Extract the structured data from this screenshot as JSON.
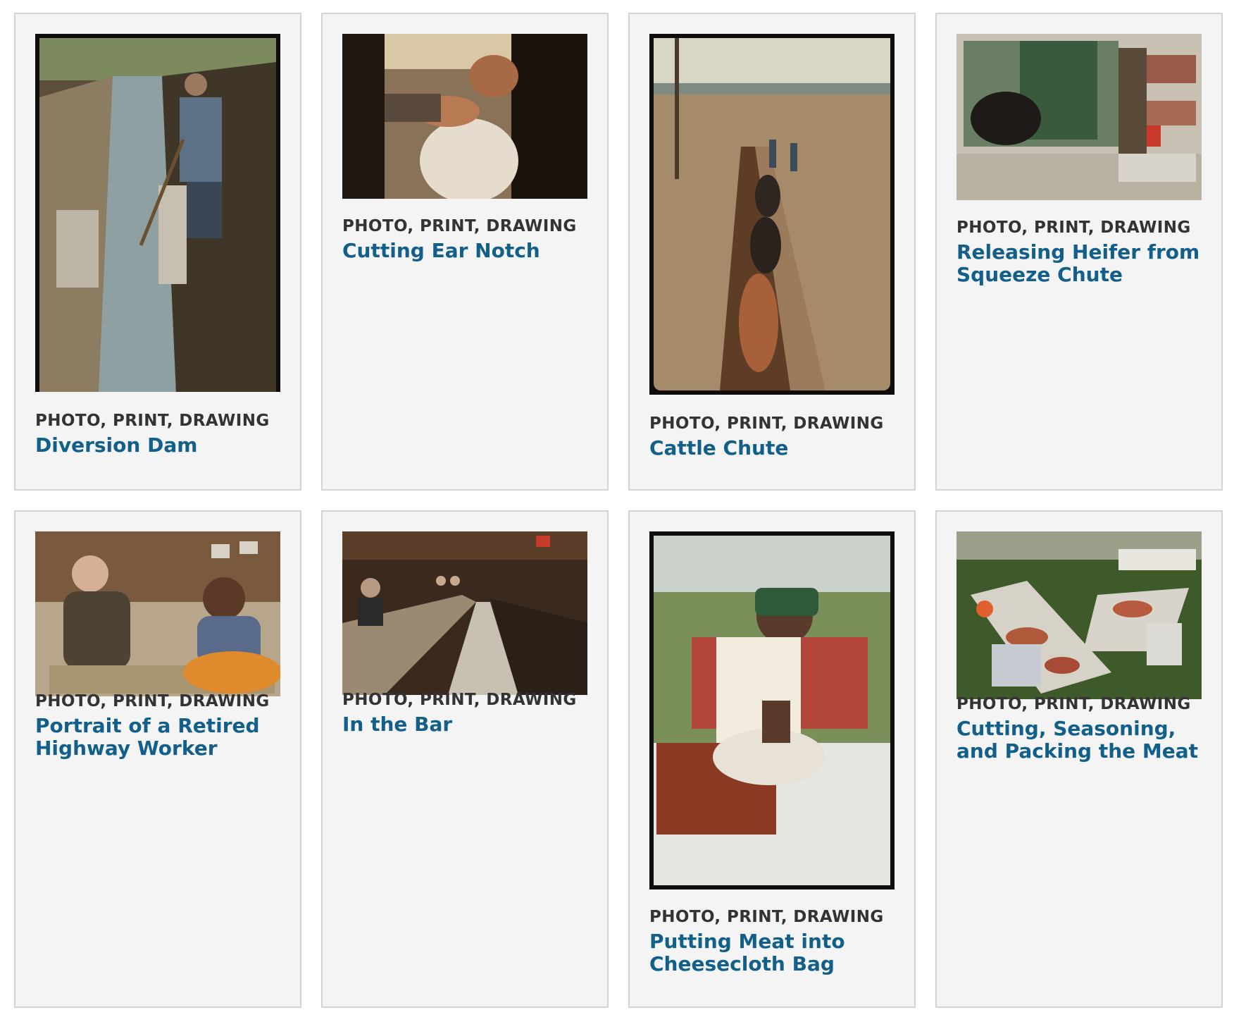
{
  "gallery": {
    "items": [
      {
        "type_label": "PHOTO, PRINT, DRAWING",
        "title": "Diversion Dam",
        "image_desc": "photo-diversion-dam"
      },
      {
        "type_label": "PHOTO, PRINT, DRAWING",
        "title": "Cutting Ear Notch",
        "image_desc": "photo-cutting-ear-notch"
      },
      {
        "type_label": "PHOTO, PRINT, DRAWING",
        "title": "Cattle Chute",
        "image_desc": "photo-cattle-chute"
      },
      {
        "type_label": "PHOTO, PRINT, DRAWING",
        "title": "Releasing Heifer from Squeeze Chute",
        "image_desc": "photo-releasing-heifer"
      },
      {
        "type_label": "PHOTO, PRINT, DRAWING",
        "title": "Portrait of a Retired Highway Worker",
        "image_desc": "photo-retired-highway-worker"
      },
      {
        "type_label": "PHOTO, PRINT, DRAWING",
        "title": "In the Bar",
        "image_desc": "photo-in-the-bar"
      },
      {
        "type_label": "PHOTO, PRINT, DRAWING",
        "title": "Putting Meat into Cheesecloth Bag",
        "image_desc": "photo-meat-cheesecloth"
      },
      {
        "type_label": "PHOTO, PRINT, DRAWING",
        "title": "Cutting, Seasoning, and Packing the Meat",
        "image_desc": "photo-cutting-seasoning-packing"
      }
    ]
  },
  "colors": {
    "card_background": "#f4f4f4",
    "card_border": "#d4d4d4",
    "type_label": "#333333",
    "title_link": "#12608a"
  }
}
